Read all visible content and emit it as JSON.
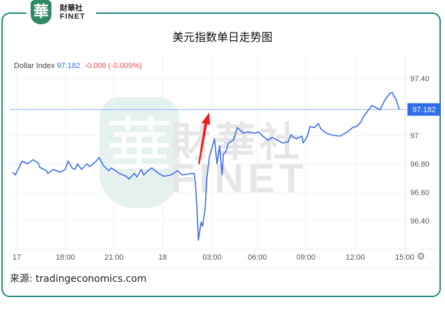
{
  "brand": {
    "name_cn": "財華社",
    "name_en": "FINET",
    "seal_char": "華"
  },
  "title": "美元指数单日走势图",
  "legend": {
    "name": "Dollar Index",
    "value": "97.182",
    "change": "-0.008 (-0.009%)"
  },
  "source": "来源:  tradingeconomics.com",
  "colors": {
    "line": "#3d6cf0",
    "frame": "#1f8a80",
    "change": "#f05050",
    "arrow": "#ee1c1c"
  },
  "chart_data": {
    "type": "line",
    "title": "美元指数单日走势图",
    "series": [
      {
        "name": "Dollar Index",
        "points": [
          [
            "17 14:45",
            96.741
          ],
          [
            "17 14:55",
            96.722
          ],
          [
            "17 15:10",
            96.78
          ],
          [
            "17 15:20",
            96.82
          ],
          [
            "17 15:40",
            96.8
          ],
          [
            "17 16:00",
            96.829
          ],
          [
            "17 16:20",
            96.805
          ],
          [
            "17 16:25",
            96.776
          ],
          [
            "17 16:50",
            96.751
          ],
          [
            "17 16:55",
            96.732
          ],
          [
            "17 17:15",
            96.761
          ],
          [
            "17 17:40",
            96.741
          ],
          [
            "17 18:00",
            96.761
          ],
          [
            "17 18:10",
            96.82
          ],
          [
            "17 18:25",
            96.771
          ],
          [
            "17 18:35",
            96.761
          ],
          [
            "17 18:45",
            96.8
          ],
          [
            "17 19:00",
            96.761
          ],
          [
            "17 19:20",
            96.8
          ],
          [
            "17 19:30",
            96.78
          ],
          [
            "17 19:55",
            96.82
          ],
          [
            "17 20:05",
            96.844
          ],
          [
            "17 20:20",
            96.79
          ],
          [
            "17 20:40",
            96.751
          ],
          [
            "17 20:50",
            96.771
          ],
          [
            "17 21:20",
            96.732
          ],
          [
            "17 21:45",
            96.712
          ],
          [
            "17 21:55",
            96.693
          ],
          [
            "17 22:15",
            96.732
          ],
          [
            "17 22:25",
            96.707
          ],
          [
            "17 22:40",
            96.761
          ],
          [
            "17 22:50",
            96.722
          ],
          [
            "17 23:05",
            96.751
          ],
          [
            "17 23:20",
            96.771
          ],
          [
            "17 23:45",
            96.732
          ],
          [
            "18 00:05",
            96.712
          ],
          [
            "18 00:30",
            96.722
          ],
          [
            "18 00:55",
            96.751
          ],
          [
            "18 01:10",
            96.722
          ],
          [
            "18 01:30",
            96.727
          ],
          [
            "18 01:45",
            96.732
          ],
          [
            "18 01:55",
            96.732
          ],
          [
            "18 02:00",
            96.644
          ],
          [
            "18 02:05",
            96.488
          ],
          [
            "18 02:10",
            96.263
          ],
          [
            "18 02:20",
            96.39
          ],
          [
            "18 02:25",
            96.361
          ],
          [
            "18 02:35",
            96.488
          ],
          [
            "18 02:40",
            96.683
          ],
          [
            "18 02:50",
            96.849
          ],
          [
            "18 03:10",
            96.976
          ],
          [
            "18 03:15",
            96.878
          ],
          [
            "18 03:20",
            96.8
          ],
          [
            "18 03:30",
            96.927
          ],
          [
            "18 03:40",
            96.722
          ],
          [
            "18 03:45",
            96.868
          ],
          [
            "18 03:55",
            96.888
          ],
          [
            "18 04:05",
            96.946
          ],
          [
            "18 04:25",
            96.966
          ],
          [
            "18 04:40",
            97.054
          ],
          [
            "18 05:05",
            97.015
          ],
          [
            "18 05:20",
            97.024
          ],
          [
            "18 05:50",
            97.015
          ],
          [
            "18 06:05",
            97.024
          ],
          [
            "18 06:20",
            96.995
          ],
          [
            "18 06:40",
            96.966
          ],
          [
            "18 06:55",
            96.985
          ],
          [
            "18 07:15",
            96.966
          ],
          [
            "18 07:35",
            96.946
          ],
          [
            "18 07:55",
            96.956
          ],
          [
            "18 08:05",
            97.005
          ],
          [
            "18 08:15",
            96.985
          ],
          [
            "18 08:25",
            96.976
          ],
          [
            "18 08:45",
            96.995
          ],
          [
            "18 08:50",
            96.946
          ],
          [
            "18 09:05",
            96.995
          ],
          [
            "18 09:15",
            97.063
          ],
          [
            "18 09:30",
            97.054
          ],
          [
            "18 09:45",
            97.083
          ],
          [
            "18 09:55",
            97.044
          ],
          [
            "18 10:15",
            97.015
          ],
          [
            "18 10:30",
            97.005
          ],
          [
            "18 10:40",
            97.0
          ],
          [
            "18 11:05",
            96.995
          ],
          [
            "18 11:30",
            97.024
          ],
          [
            "18 11:50",
            97.054
          ],
          [
            "18 12:05",
            97.063
          ],
          [
            "18 12:20",
            97.093
          ],
          [
            "18 12:30",
            97.132
          ],
          [
            "18 12:45",
            97.171
          ],
          [
            "18 13:00",
            97.21
          ],
          [
            "18 13:10",
            97.2
          ],
          [
            "18 13:30",
            97.18
          ],
          [
            "18 13:45",
            97.239
          ],
          [
            "18 13:55",
            97.268
          ],
          [
            "18 14:05",
            97.293
          ],
          [
            "18 14:15",
            97.302
          ],
          [
            "18 14:20",
            97.278
          ],
          [
            "18 14:30",
            97.249
          ],
          [
            "18 14:40",
            97.182
          ]
        ]
      }
    ],
    "x_tick_labels": [
      "17",
      "18:00",
      "21:00",
      "18",
      "03:00",
      "06:00",
      "09:00",
      "12:00",
      "15:00"
    ],
    "y_tick_labels": [
      "97.40",
      "97",
      "96.80",
      "96.60",
      "96.40"
    ],
    "y_ticks": [
      97.4,
      97.0,
      96.8,
      96.6,
      96.4
    ],
    "ylim": [
      96.25,
      97.45
    ],
    "last_value_label": "97.182",
    "last_value": 97.182,
    "grid": true,
    "legend": "top-left"
  }
}
